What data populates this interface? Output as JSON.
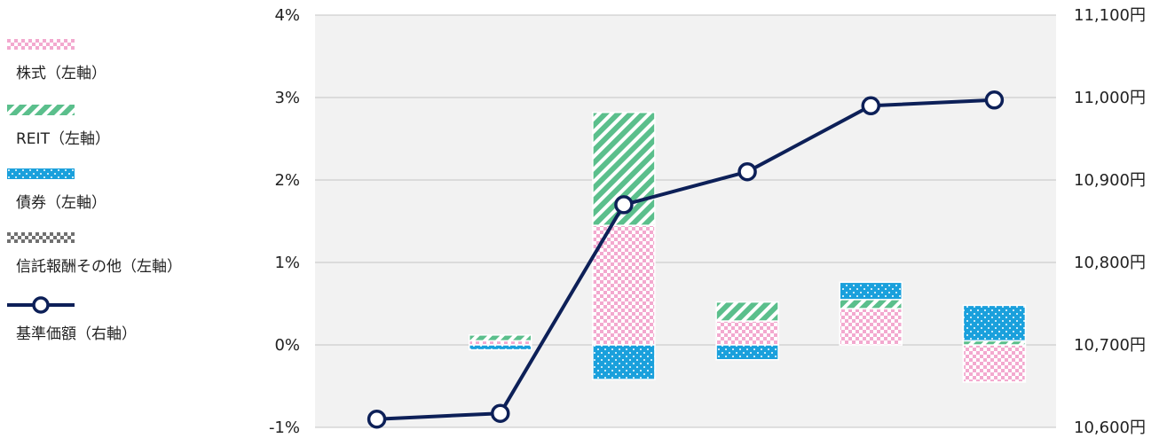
{
  "chart_data": {
    "type": "bar",
    "stacked": true,
    "categories": [
      "",
      "",
      "",
      "",
      "",
      ""
    ],
    "series": [
      {
        "name": "株式（左軸）",
        "values": [
          0,
          0.05,
          1.45,
          0.29,
          0.44,
          -0.45
        ],
        "color": "#f3a9cf",
        "pattern": "checker"
      },
      {
        "name": "REIT（左軸）",
        "values": [
          0,
          0.07,
          1.37,
          0.23,
          0.11,
          0.05
        ],
        "color": "#5bbf8c",
        "pattern": "diagonal-stripes"
      },
      {
        "name": "債券（左軸）",
        "values": [
          0,
          -0.06,
          -0.42,
          -0.18,
          0.21,
          0.43
        ],
        "color": "#1aa0dc",
        "pattern": "dots"
      },
      {
        "name": "信託報酬その他（左軸）",
        "values": [
          0,
          0,
          0,
          0,
          0,
          0
        ],
        "color": "#707070",
        "pattern": "checker"
      }
    ],
    "line": {
      "name": "基準価額（右軸）",
      "values": [
        10610,
        10617,
        10870,
        10910,
        10990,
        10997
      ],
      "color": "#0d2058"
    },
    "y_left": {
      "ylim": [
        -1,
        4
      ],
      "ticks": [
        "-1%",
        "0%",
        "1%",
        "2%",
        "3%",
        "4%"
      ]
    },
    "y_right": {
      "ylim": [
        10600,
        11100
      ],
      "ticks": [
        "10,600円",
        "10,700円",
        "10,800円",
        "10,900円",
        "11,000円",
        "11,100円"
      ]
    },
    "legend_position": "left",
    "grid": true
  }
}
